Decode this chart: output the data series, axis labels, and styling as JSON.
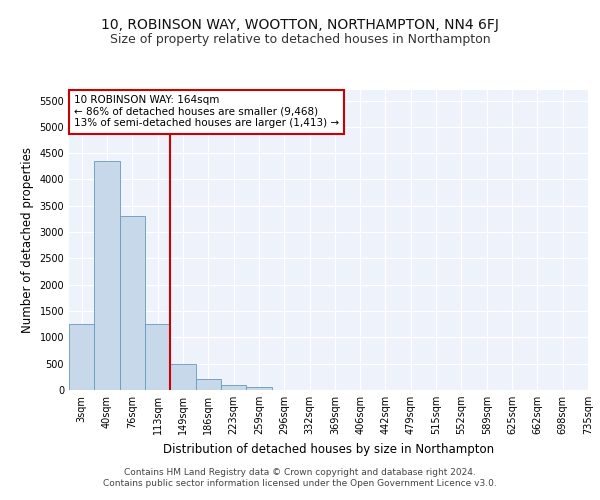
{
  "title": "10, ROBINSON WAY, WOOTTON, NORTHAMPTON, NN4 6FJ",
  "subtitle": "Size of property relative to detached houses in Northampton",
  "xlabel": "Distribution of detached houses by size in Northampton",
  "ylabel": "Number of detached properties",
  "bar_values": [
    1260,
    4350,
    3300,
    1260,
    490,
    215,
    90,
    60,
    0,
    0,
    0,
    0,
    0,
    0,
    0,
    0,
    0,
    0,
    0,
    0
  ],
  "bin_labels": [
    "3sqm",
    "40sqm",
    "76sqm",
    "113sqm",
    "149sqm",
    "186sqm",
    "223sqm",
    "259sqm",
    "296sqm",
    "332sqm",
    "369sqm",
    "406sqm",
    "442sqm",
    "479sqm",
    "515sqm",
    "552sqm",
    "589sqm",
    "625sqm",
    "662sqm",
    "698sqm",
    "735sqm"
  ],
  "bar_color": "#c8d8eb",
  "bar_edge_color": "#6699bb",
  "vline_x": 3.5,
  "vline_color": "#cc0000",
  "annotation_text": "10 ROBINSON WAY: 164sqm\n← 86% of detached houses are smaller (9,468)\n13% of semi-detached houses are larger (1,413) →",
  "annotation_box_color": "#ffffff",
  "annotation_box_edge": "#cc0000",
  "ylim": [
    0,
    5700
  ],
  "yticks": [
    0,
    500,
    1000,
    1500,
    2000,
    2500,
    3000,
    3500,
    4000,
    4500,
    5000,
    5500
  ],
  "footer": "Contains HM Land Registry data © Crown copyright and database right 2024.\nContains public sector information licensed under the Open Government Licence v3.0.",
  "bg_color": "#eef2fb",
  "grid_color": "#ffffff",
  "title_fontsize": 10,
  "subtitle_fontsize": 9,
  "axis_label_fontsize": 8.5,
  "tick_fontsize": 7,
  "footer_fontsize": 6.5,
  "annotation_fontsize": 7.5
}
